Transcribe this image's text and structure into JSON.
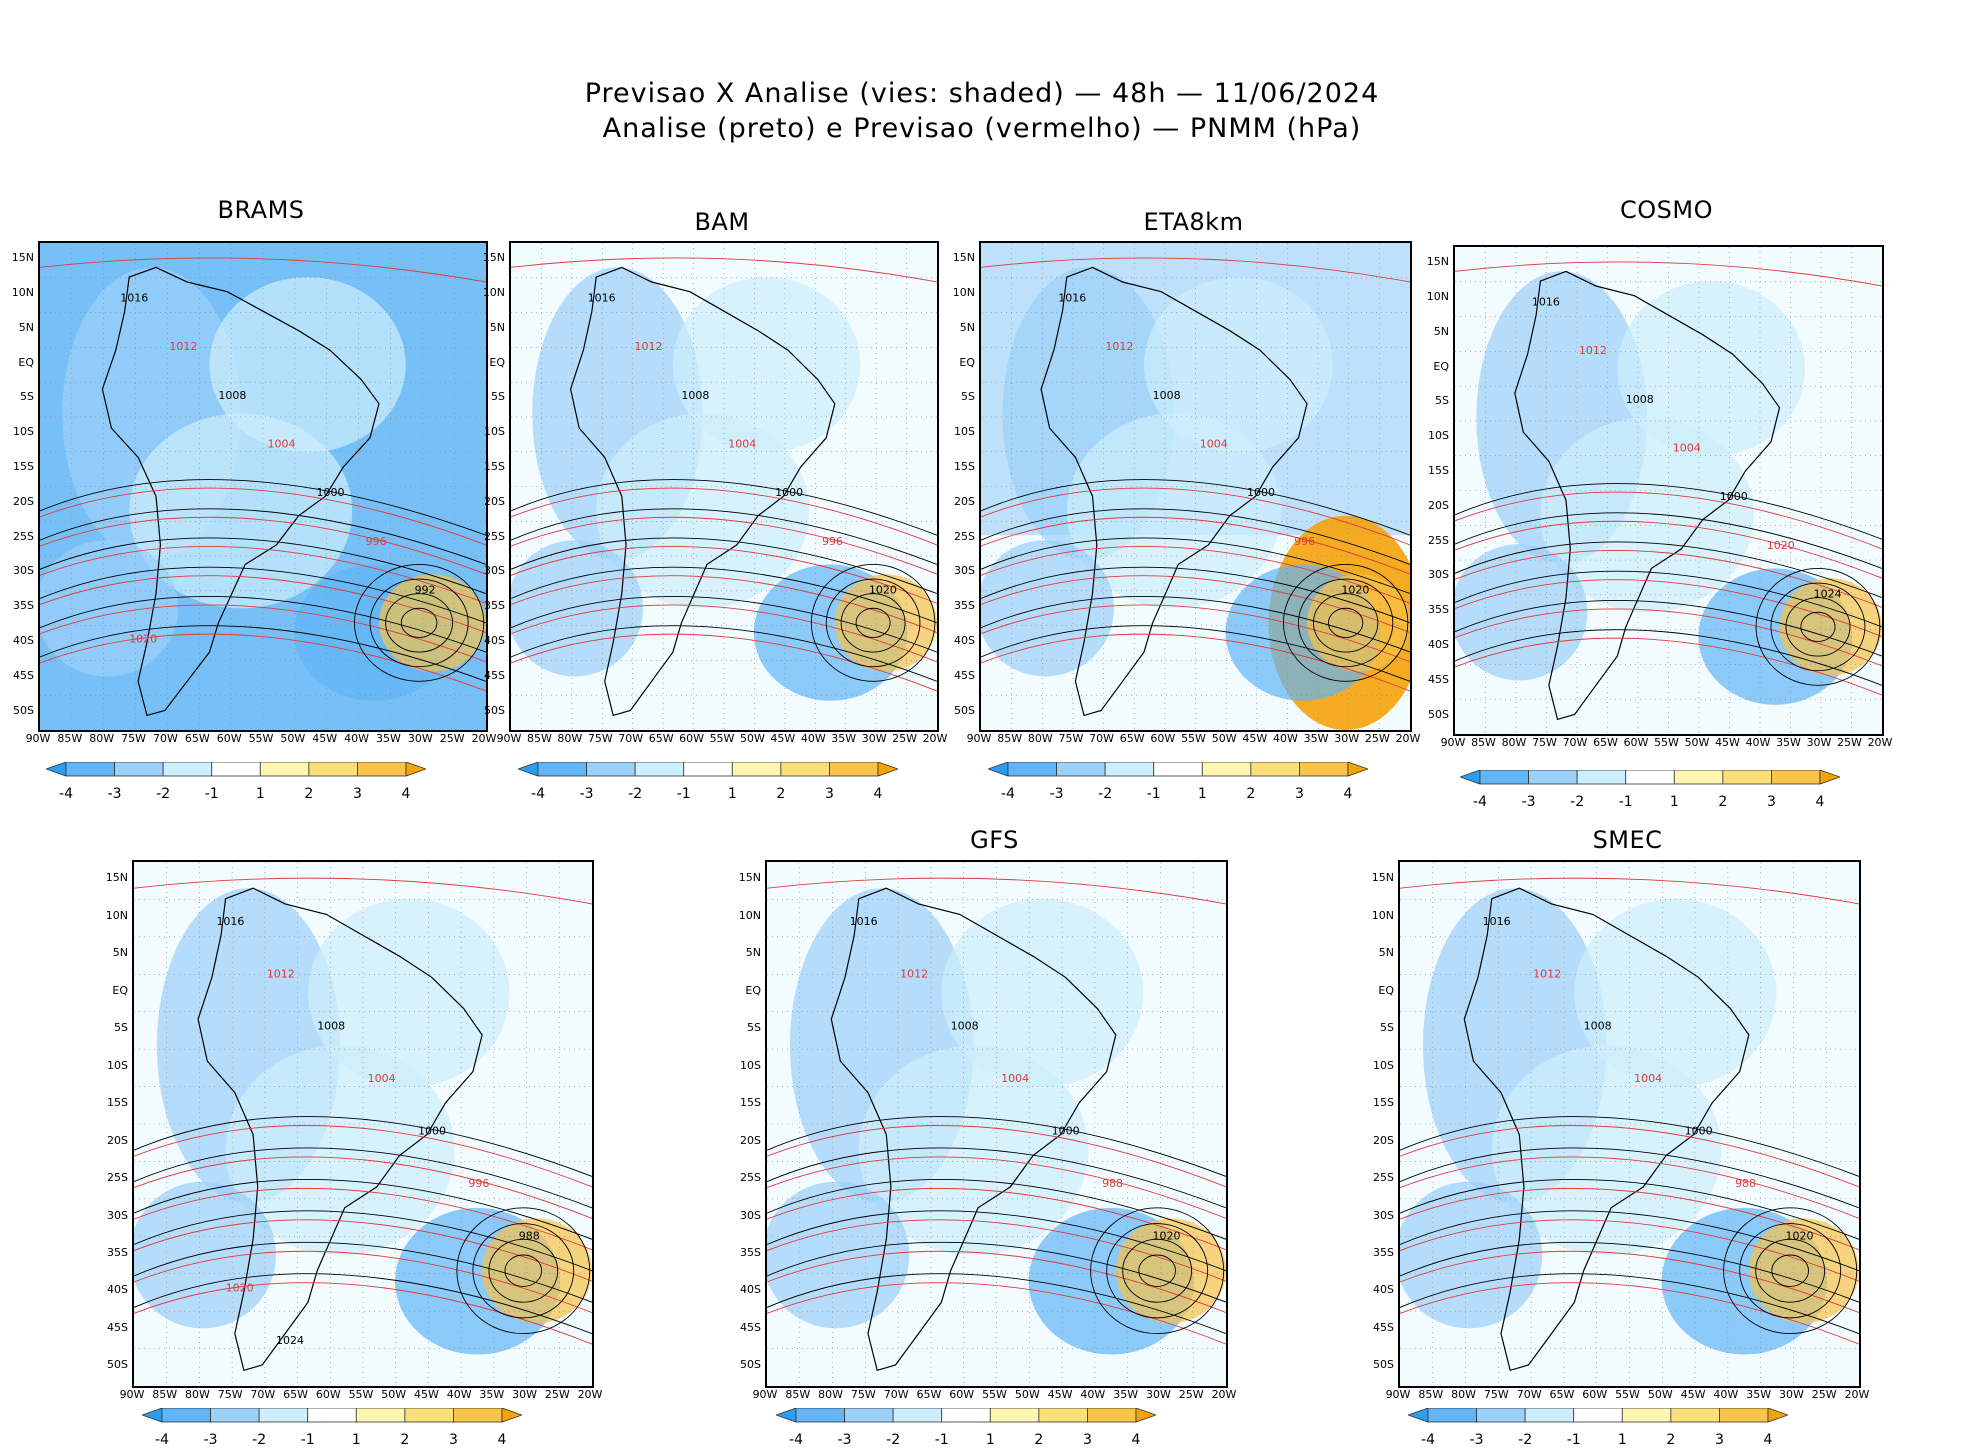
{
  "header": {
    "line1": "Previsao X Analise (vies: shaded) — 48h — 11/06/2024",
    "line2": "Analise (preto) e Previsao (vermelho) — PNMM (hPa)"
  },
  "axes": {
    "lat_labels": [
      "15N",
      "10N",
      "5N",
      "EQ",
      "5S",
      "10S",
      "15S",
      "20S",
      "25S",
      "30S",
      "35S",
      "40S",
      "45S",
      "50S"
    ],
    "lon_labels": [
      "90W",
      "85W",
      "80W",
      "75W",
      "70W",
      "65W",
      "60W",
      "55W",
      "50W",
      "45W",
      "40W",
      "35W",
      "30W",
      "25W",
      "20W"
    ]
  },
  "colorbar": {
    "labels": [
      "-4",
      "-3",
      "-2",
      "-1",
      "1",
      "2",
      "3",
      "4"
    ],
    "colors": [
      "#2b9cf0",
      "#61b5f6",
      "#9bd0f9",
      "#cdeefc",
      "#ffffff",
      "#fef5b0",
      "#fbe07a",
      "#f8c348",
      "#f5a30a"
    ]
  },
  "contour_colors": {
    "analysis": "#000000",
    "forecast": "#e03a3a"
  },
  "panels": [
    {
      "title": "BRAMS",
      "isobars": [
        "1016",
        "1012",
        "1008",
        "1004",
        "1000",
        "996",
        "992",
        "1020"
      ]
    },
    {
      "title": "BAM",
      "isobars": [
        "1016",
        "1012",
        "1008",
        "1004",
        "1000",
        "996",
        "1020"
      ]
    },
    {
      "title": "ETA8km",
      "isobars": [
        "1016",
        "1012",
        "1008",
        "1004",
        "1000",
        "996",
        "1020"
      ]
    },
    {
      "title": "COSMO",
      "isobars": [
        "1016",
        "1012",
        "1008",
        "1004",
        "1000",
        "1020",
        "1024"
      ]
    },
    {
      "title": "",
      "isobars": [
        "1016",
        "1012",
        "1008",
        "1004",
        "1000",
        "996",
        "988",
        "1020",
        "1024"
      ]
    },
    {
      "title": "GFS",
      "isobars": [
        "1016",
        "1012",
        "1008",
        "1004",
        "1000",
        "988",
        "1020"
      ]
    },
    {
      "title": "SMEC",
      "isobars": [
        "1016",
        "1012",
        "1008",
        "1004",
        "1000",
        "988",
        "1020"
      ]
    }
  ]
}
